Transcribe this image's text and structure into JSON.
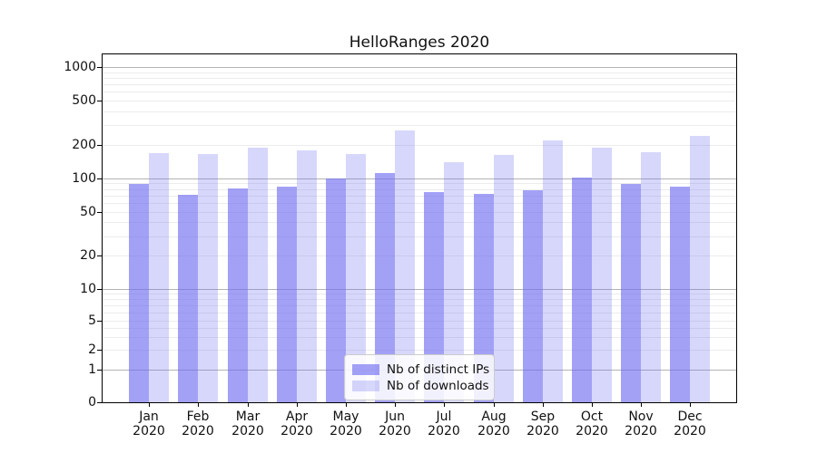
{
  "figure": {
    "title": "HelloRanges 2020"
  },
  "chart_data": {
    "type": "bar",
    "title": "HelloRanges 2020",
    "categories": [
      "Jan 2020",
      "Feb 2020",
      "Mar 2020",
      "Apr 2020",
      "May 2020",
      "Jun 2020",
      "Jul 2020",
      "Aug 2020",
      "Sep 2020",
      "Oct 2020",
      "Nov 2020",
      "Dec 2020"
    ],
    "months": [
      "Jan",
      "Feb",
      "Mar",
      "Apr",
      "May",
      "Jun",
      "Jul",
      "Aug",
      "Sep",
      "Oct",
      "Nov",
      "Dec"
    ],
    "year": "2020",
    "series": [
      {
        "name": "Nb of distinct IPs",
        "color": "rgba(109,106,241,0.63)",
        "values": [
          88,
          70,
          80,
          84,
          99,
          110,
          75,
          72,
          77,
          101,
          89,
          83
        ]
      },
      {
        "name": "Nb of downloads",
        "color": "rgba(109,106,241,0.27)",
        "values": [
          168,
          164,
          187,
          176,
          163,
          265,
          139,
          161,
          216,
          188,
          170,
          237
        ]
      }
    ],
    "yscale": "symlog",
    "y_ticks": [
      0,
      1,
      2,
      5,
      10,
      20,
      50,
      100,
      200,
      500,
      1000
    ],
    "ylim": [
      0,
      1300
    ],
    "xlabel": "",
    "ylabel": "",
    "grid": true,
    "legend_position": "lower center"
  },
  "colors": {
    "bar_dark": "rgba(109,106,241,0.63)",
    "bar_light": "rgba(109,106,241,0.27)",
    "grid_major": "#b3b3b3",
    "grid_minor": "#ececec",
    "spine": "#000000",
    "background": "#ffffff"
  }
}
